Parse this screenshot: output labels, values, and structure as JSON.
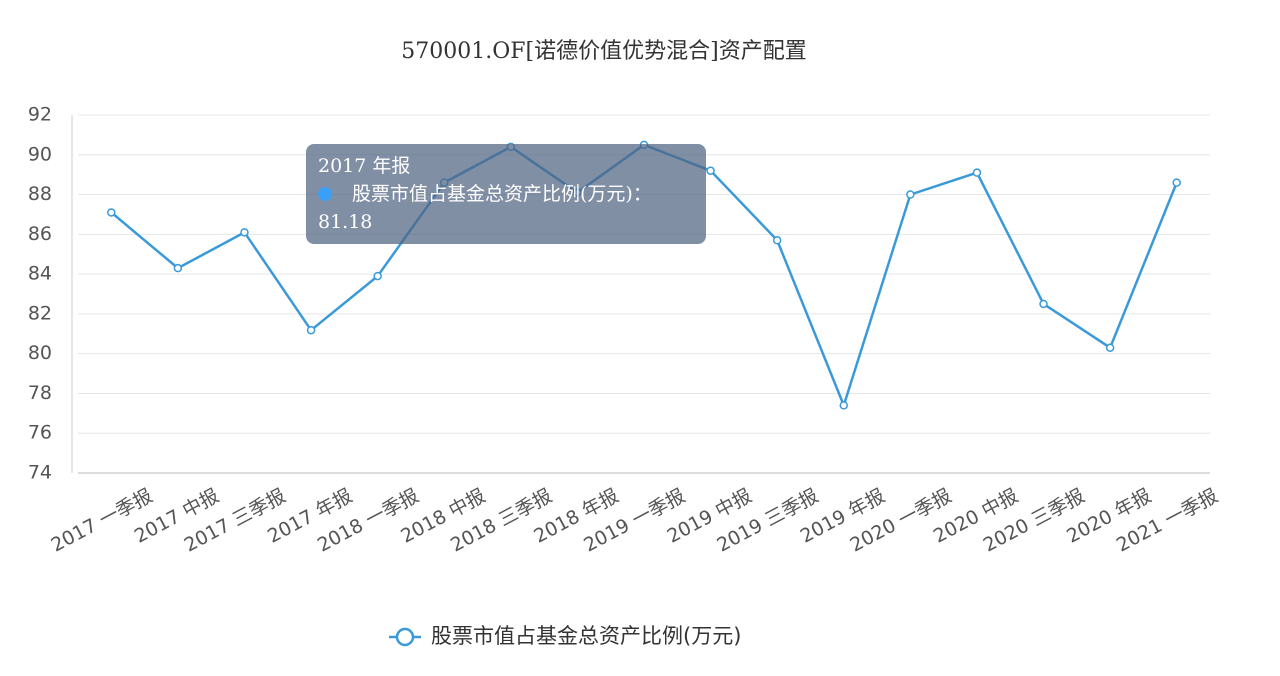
{
  "chart_data": {
    "type": "line",
    "title": "570001.OF[诺德价值优势混合]资产配置",
    "categories": [
      "2017 一季报",
      "2017 中报",
      "2017 三季报",
      "2017 年报",
      "2018 一季报",
      "2018 中报",
      "2018 三季报",
      "2018 年报",
      "2019 一季报",
      "2019 中报",
      "2019 三季报",
      "2019 年报",
      "2020 一季报",
      "2020 中报",
      "2020 三季报",
      "2020 年报",
      "2021 一季报"
    ],
    "series": [
      {
        "name": "股票市值占基金总资产比例(万元)",
        "color": "#3a9ad9",
        "values": [
          87.1,
          84.3,
          86.1,
          81.18,
          83.9,
          88.6,
          90.4,
          88.1,
          90.5,
          89.2,
          85.7,
          77.4,
          88.0,
          89.1,
          82.5,
          80.3,
          88.6
        ]
      }
    ],
    "ylim": [
      74,
      92
    ],
    "yticks": [
      74,
      76,
      78,
      80,
      82,
      84,
      86,
      88,
      90,
      92
    ],
    "grid": true,
    "legend": "bottom",
    "tooltip": {
      "title": "2017 年报",
      "text": "股票市值占基金总资产比例(万元)：81.18"
    }
  }
}
